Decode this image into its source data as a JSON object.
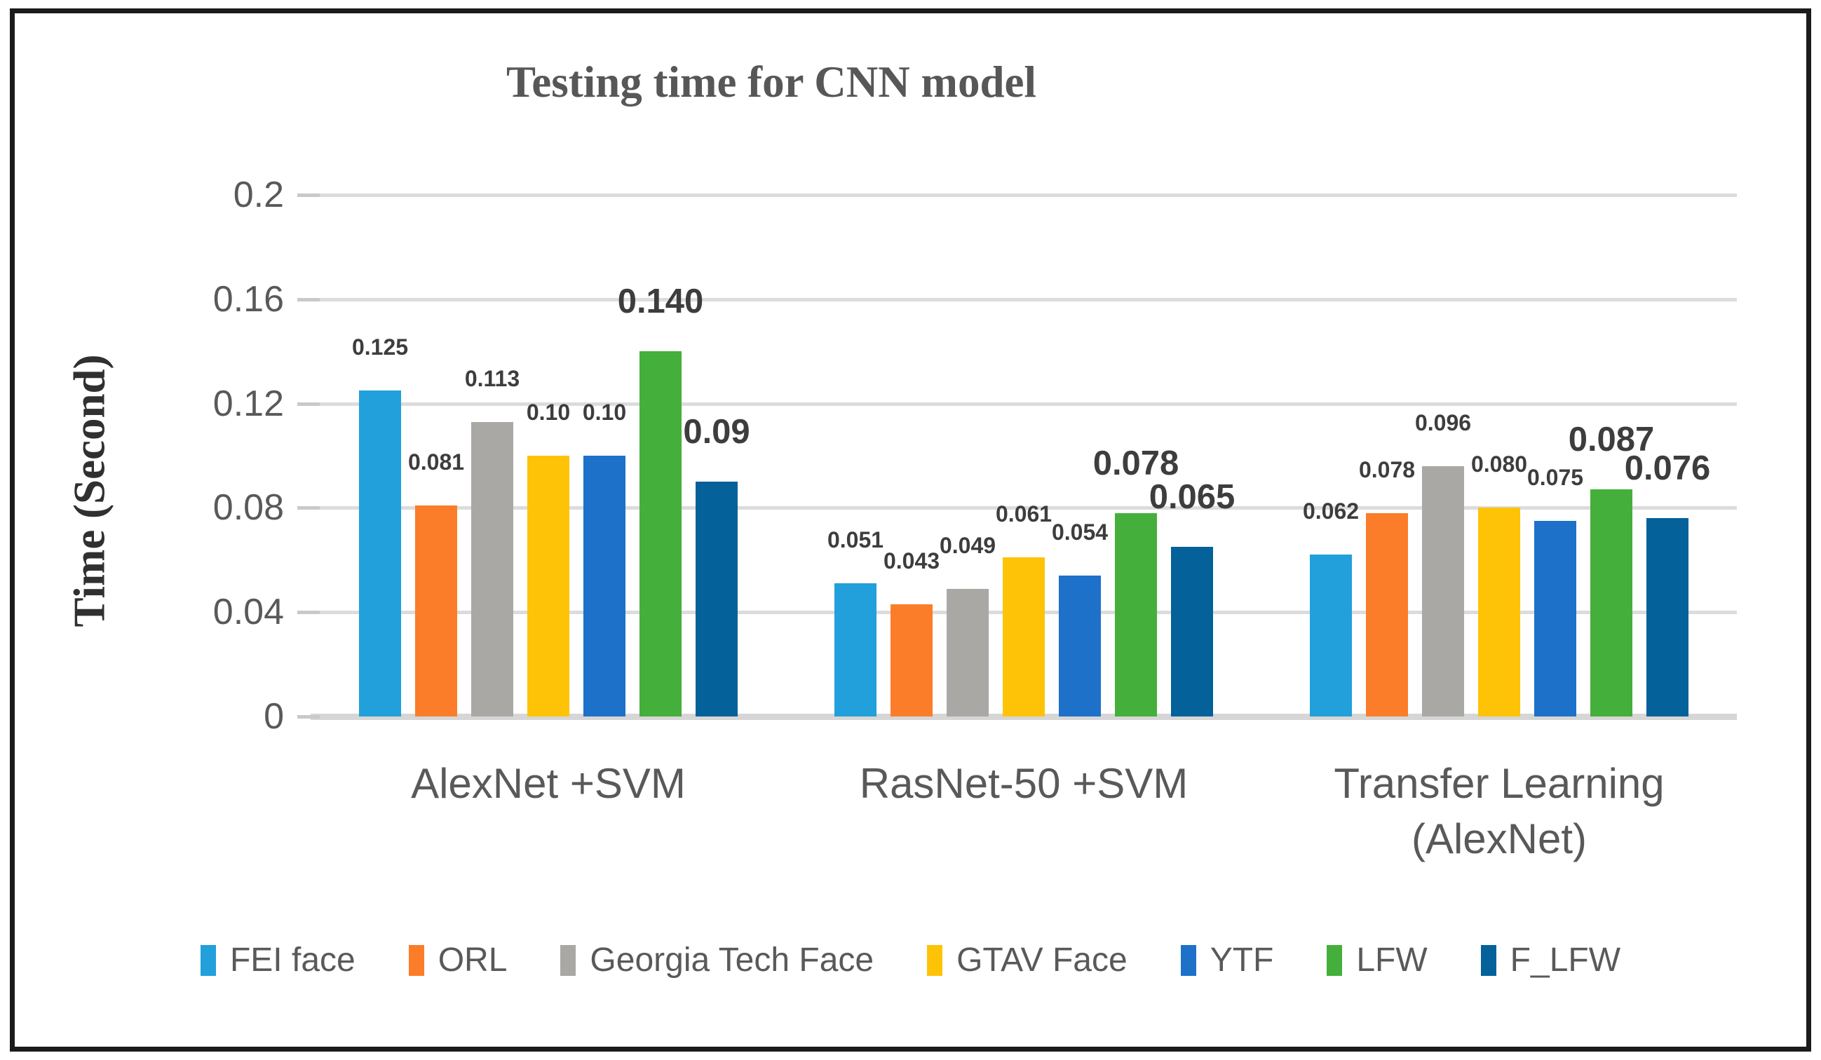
{
  "title": "Testing time for CNN model",
  "chart_data": {
    "type": "bar",
    "title": "Testing time for CNN model",
    "ylabel": "Time (Second)",
    "xlabel": "",
    "ylim": [
      0,
      0.2
    ],
    "yticks": [
      0,
      0.04,
      0.08,
      0.12,
      0.16,
      0.2
    ],
    "ytick_labels": [
      "0",
      "0.04",
      "0.08",
      "0.12",
      "0.16",
      "0.2"
    ],
    "grid": true,
    "legend_position": "bottom",
    "categories": [
      "AlexNet +SVM",
      "RasNet-50 +SVM",
      "Transfer Learning (AlexNet)"
    ],
    "series": [
      {
        "name": "FEI face",
        "color": "#21A0DB",
        "label_size": "small",
        "values": [
          0.125,
          0.051,
          0.062
        ],
        "labels": [
          "0.125",
          "0.051",
          "0.062"
        ]
      },
      {
        "name": "ORL",
        "color": "#FB7D29",
        "label_size": "small",
        "values": [
          0.081,
          0.043,
          0.078
        ],
        "labels": [
          "0.081",
          "0.043",
          "0.078"
        ]
      },
      {
        "name": "Georgia Tech Face",
        "color": "#A9A8A5",
        "label_size": "small",
        "values": [
          0.113,
          0.049,
          0.096
        ],
        "labels": [
          "0.113",
          "0.049",
          "0.096"
        ]
      },
      {
        "name": "GTAV Face",
        "color": "#FEC306",
        "label_size": "small",
        "values": [
          0.1,
          0.061,
          0.08
        ],
        "labels": [
          "0.10",
          "0.061",
          "0.080"
        ]
      },
      {
        "name": "YTF",
        "color": "#1D71C9",
        "label_size": "small",
        "values": [
          0.1,
          0.054,
          0.075
        ],
        "labels": [
          "0.10",
          "0.054",
          "0.075"
        ]
      },
      {
        "name": "LFW",
        "color": "#45AF3B",
        "label_size": "large",
        "values": [
          0.14,
          0.078,
          0.087
        ],
        "labels": [
          "0.140",
          "0.078",
          "0.087"
        ]
      },
      {
        "name": "F_LFW",
        "color": "#04619A",
        "label_size": "large",
        "values": [
          0.09,
          0.065,
          0.076
        ],
        "labels": [
          "0.09",
          "0.065",
          "0.076"
        ]
      }
    ]
  }
}
